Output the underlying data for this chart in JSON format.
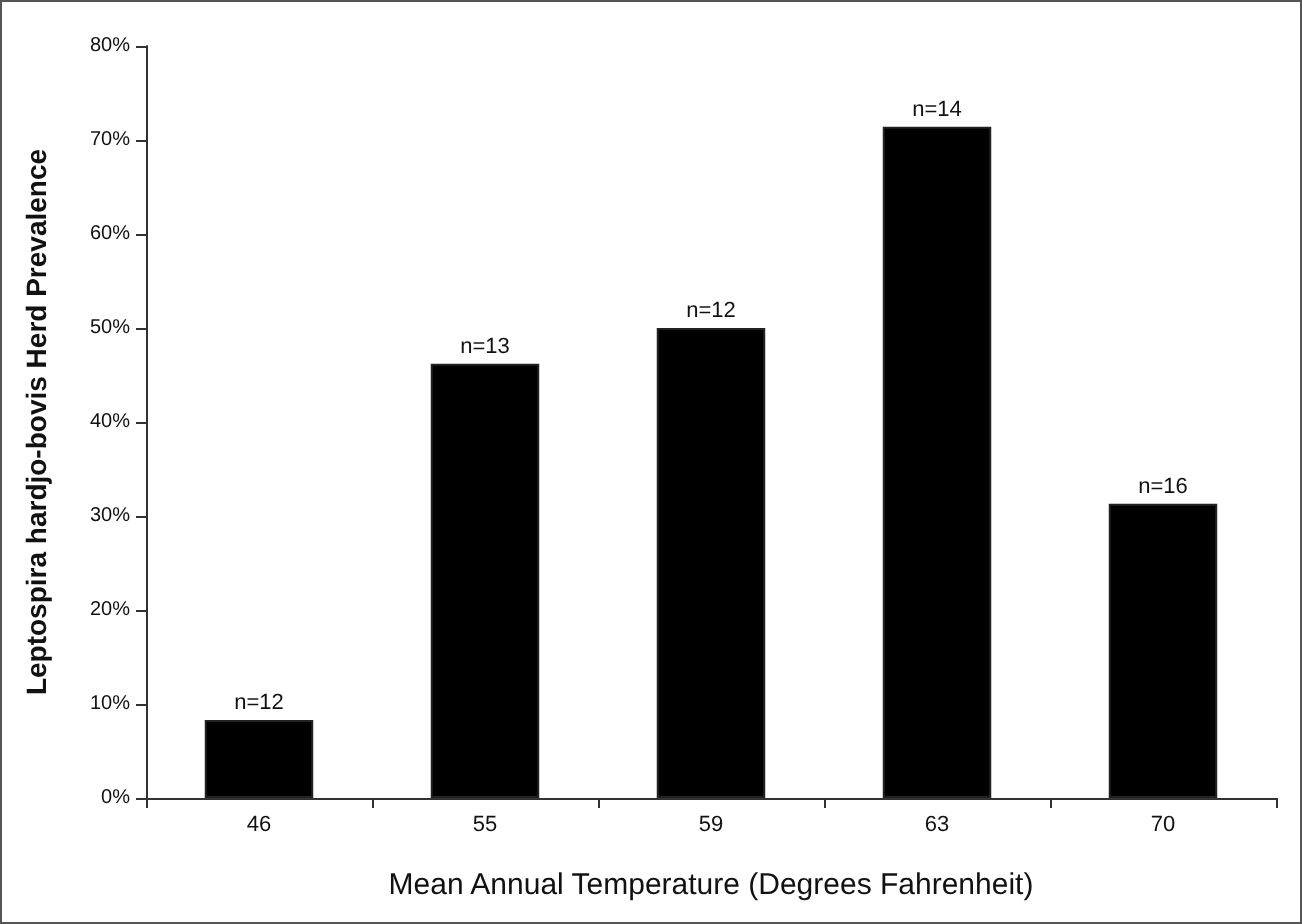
{
  "chart_data": {
    "type": "bar",
    "xlabel": "Mean Annual Temperature (Degrees Fahrenheit)",
    "ylabel": "Leptospira hardjo-bovis Herd Prevalence",
    "categories": [
      "46",
      "55",
      "59",
      "63",
      "70"
    ],
    "values": [
      8.3,
      46.2,
      50,
      71.4,
      31.3
    ],
    "color": "#000000",
    "ylim": [
      0,
      80
    ],
    "yticks": [
      {
        "value": 0,
        "label": "0%"
      },
      {
        "value": 10,
        "label": "10%"
      },
      {
        "value": 20,
        "label": "20%"
      },
      {
        "value": 30,
        "label": "30%"
      },
      {
        "value": 40,
        "label": "40%"
      },
      {
        "value": 50,
        "label": "50%"
      },
      {
        "value": 60,
        "label": "60%"
      },
      {
        "value": 70,
        "label": "70%"
      },
      {
        "value": 80,
        "label": "80%"
      }
    ],
    "grid": false,
    "annotations": [
      {
        "text": "n=12",
        "x": "46",
        "y": 8.3
      },
      {
        "text": "n=13",
        "x": "55",
        "y": 46.2
      },
      {
        "text": "n=12",
        "x": "59",
        "y": 50
      },
      {
        "text": "n=14",
        "x": "63",
        "y": 71.4
      },
      {
        "text": "n=16",
        "x": "70",
        "y": 31.3
      }
    ]
  }
}
